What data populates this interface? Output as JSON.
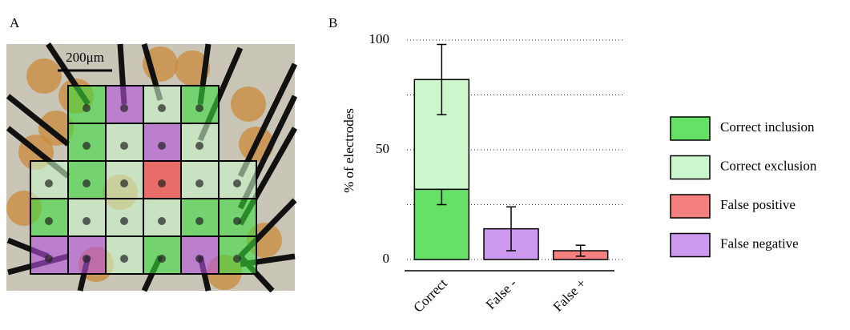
{
  "panel_labels": [
    "A",
    "B"
  ],
  "scale_bar_label": "200μm",
  "chart_data": {
    "type": "bar",
    "stacked": true,
    "ylabel": "% of electrodes",
    "categories": [
      "Correct",
      "False -",
      "False +"
    ],
    "series": [
      {
        "name": "Correct inclusion",
        "color": "#66e066",
        "values": [
          32,
          null,
          null
        ],
        "errors": [
          7,
          null,
          null
        ]
      },
      {
        "name": "Correct exclusion",
        "color": "#ccf7cc",
        "values": [
          50,
          null,
          null
        ],
        "errors": [
          16,
          null,
          null
        ]
      },
      {
        "name": "False positive",
        "color": "#f58080",
        "values": [
          null,
          null,
          4
        ],
        "errors": [
          null,
          null,
          2.5
        ]
      },
      {
        "name": "False negative",
        "color": "#cc99ee",
        "values": [
          null,
          14,
          null
        ],
        "errors": [
          null,
          10,
          null
        ]
      }
    ],
    "ylim": [
      0,
      100
    ],
    "yticks": [
      0,
      50,
      100
    ],
    "minor_grid": [
      25,
      75
    ],
    "grid": true,
    "legend": "right"
  }
}
